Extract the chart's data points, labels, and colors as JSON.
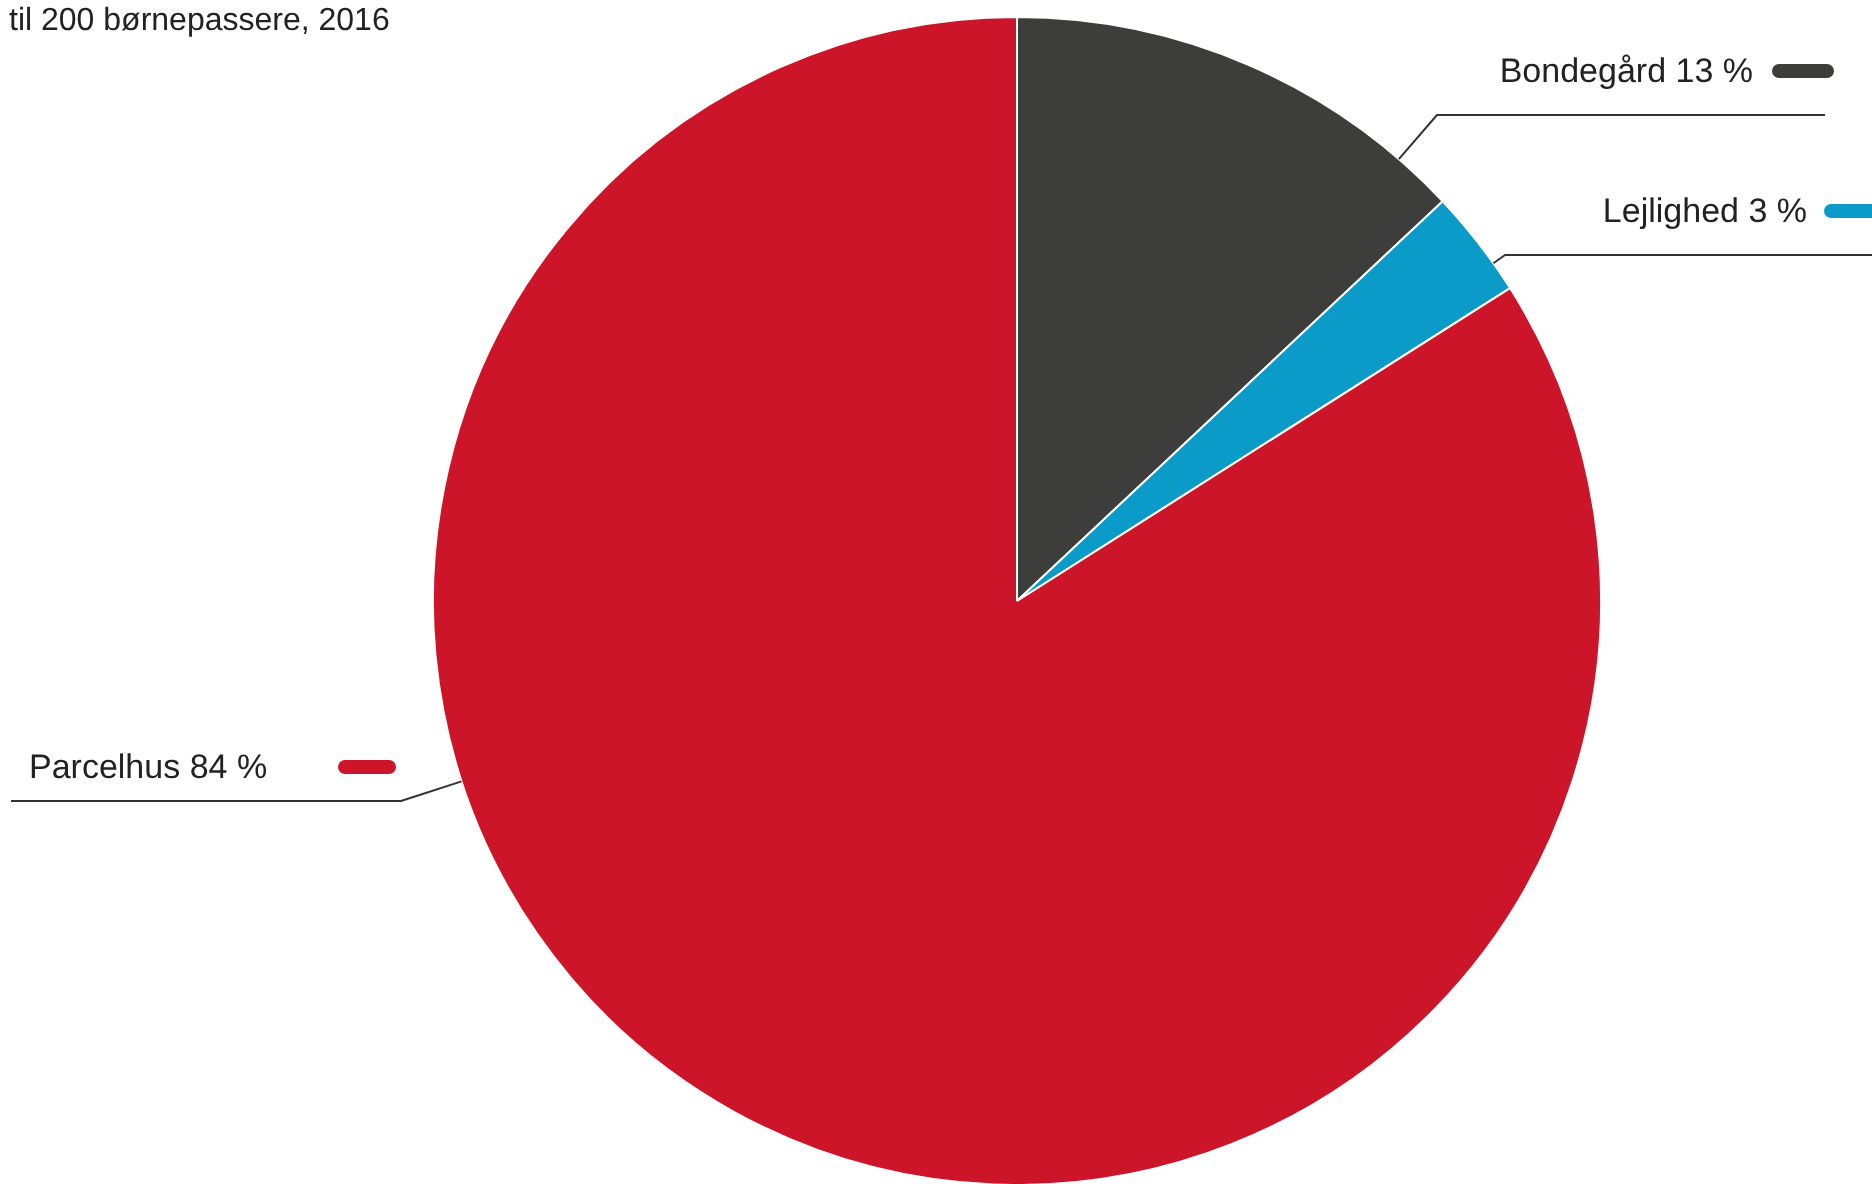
{
  "chart_data": {
    "type": "pie",
    "subtitle": "til 200 børnepassere, 2016",
    "categories": [
      "Bondegård",
      "Lejlighed",
      "Parcelhus"
    ],
    "values": [
      13,
      3,
      84
    ],
    "value_labels": [
      "13 %",
      "3 %",
      "84 %"
    ],
    "colors": [
      "#3d3d3b",
      "#0a9bc8",
      "#cc1529"
    ],
    "legend": "top left"
  }
}
